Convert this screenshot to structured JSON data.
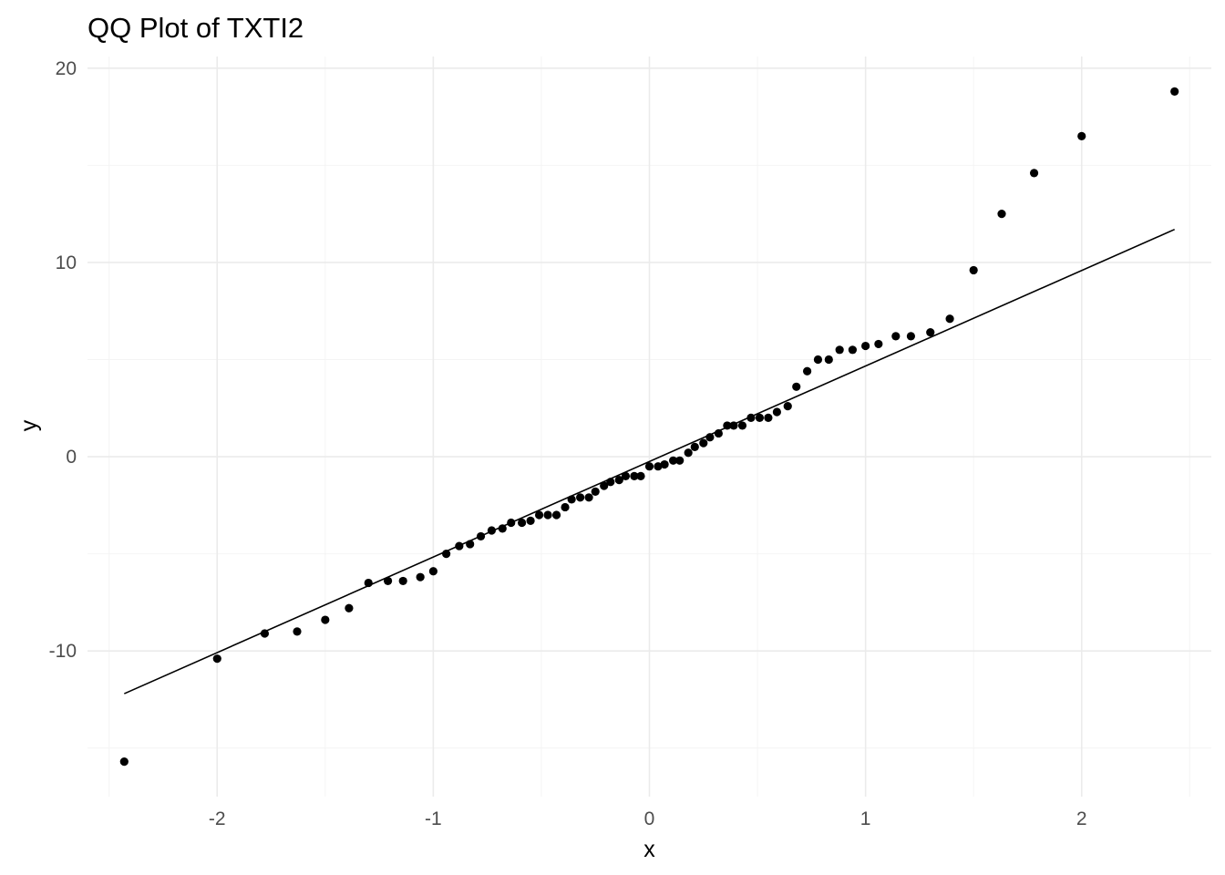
{
  "chart_data": {
    "type": "scatter",
    "title": "QQ Plot of TXTI2",
    "xlabel": "x",
    "ylabel": "y",
    "xlim": [
      -2.6,
      2.6
    ],
    "ylim": [
      -17.5,
      20.6
    ],
    "x_ticks": [
      -2,
      -1,
      0,
      1,
      2
    ],
    "y_ticks": [
      -10,
      0,
      10,
      20
    ],
    "x_tick_labels": [
      "-2",
      "-1",
      "0",
      "1",
      "2"
    ],
    "y_tick_labels": [
      "-10",
      "0",
      "10",
      "20"
    ],
    "grid": true,
    "legend": "none",
    "reference_line": {
      "from": {
        "x": -2.43,
        "y": -12.2
      },
      "to": {
        "x": 2.43,
        "y": 11.7
      }
    },
    "points": [
      {
        "x": -2.43,
        "y": -15.7
      },
      {
        "x": -2.0,
        "y": -10.4
      },
      {
        "x": -1.78,
        "y": -9.1
      },
      {
        "x": -1.63,
        "y": -9.0
      },
      {
        "x": -1.5,
        "y": -8.4
      },
      {
        "x": -1.39,
        "y": -7.8
      },
      {
        "x": -1.3,
        "y": -6.5
      },
      {
        "x": -1.21,
        "y": -6.4
      },
      {
        "x": -1.14,
        "y": -6.4
      },
      {
        "x": -1.06,
        "y": -6.2
      },
      {
        "x": -1.0,
        "y": -5.9
      },
      {
        "x": -0.94,
        "y": -5.0
      },
      {
        "x": -0.88,
        "y": -4.6
      },
      {
        "x": -0.83,
        "y": -4.5
      },
      {
        "x": -0.78,
        "y": -4.1
      },
      {
        "x": -0.73,
        "y": -3.8
      },
      {
        "x": -0.68,
        "y": -3.7
      },
      {
        "x": -0.64,
        "y": -3.4
      },
      {
        "x": -0.59,
        "y": -3.4
      },
      {
        "x": -0.55,
        "y": -3.3
      },
      {
        "x": -0.51,
        "y": -3.0
      },
      {
        "x": -0.47,
        "y": -3.0
      },
      {
        "x": -0.43,
        "y": -3.0
      },
      {
        "x": -0.39,
        "y": -2.6
      },
      {
        "x": -0.36,
        "y": -2.2
      },
      {
        "x": -0.32,
        "y": -2.1
      },
      {
        "x": -0.28,
        "y": -2.1
      },
      {
        "x": -0.25,
        "y": -1.8
      },
      {
        "x": -0.21,
        "y": -1.5
      },
      {
        "x": -0.18,
        "y": -1.3
      },
      {
        "x": -0.14,
        "y": -1.2
      },
      {
        "x": -0.11,
        "y": -1.0
      },
      {
        "x": -0.07,
        "y": -1.0
      },
      {
        "x": -0.04,
        "y": -1.0
      },
      {
        "x": 0.0,
        "y": -0.5
      },
      {
        "x": 0.04,
        "y": -0.5
      },
      {
        "x": 0.07,
        "y": -0.4
      },
      {
        "x": 0.11,
        "y": -0.2
      },
      {
        "x": 0.14,
        "y": -0.2
      },
      {
        "x": 0.18,
        "y": 0.2
      },
      {
        "x": 0.21,
        "y": 0.5
      },
      {
        "x": 0.25,
        "y": 0.7
      },
      {
        "x": 0.28,
        "y": 1.0
      },
      {
        "x": 0.32,
        "y": 1.2
      },
      {
        "x": 0.36,
        "y": 1.6
      },
      {
        "x": 0.39,
        "y": 1.6
      },
      {
        "x": 0.43,
        "y": 1.6
      },
      {
        "x": 0.47,
        "y": 2.0
      },
      {
        "x": 0.51,
        "y": 2.0
      },
      {
        "x": 0.55,
        "y": 2.0
      },
      {
        "x": 0.59,
        "y": 2.3
      },
      {
        "x": 0.64,
        "y": 2.6
      },
      {
        "x": 0.68,
        "y": 3.6
      },
      {
        "x": 0.73,
        "y": 4.4
      },
      {
        "x": 0.78,
        "y": 5.0
      },
      {
        "x": 0.83,
        "y": 5.0
      },
      {
        "x": 0.88,
        "y": 5.5
      },
      {
        "x": 0.94,
        "y": 5.5
      },
      {
        "x": 1.0,
        "y": 5.7
      },
      {
        "x": 1.06,
        "y": 5.8
      },
      {
        "x": 1.14,
        "y": 6.2
      },
      {
        "x": 1.21,
        "y": 6.2
      },
      {
        "x": 1.3,
        "y": 6.4
      },
      {
        "x": 1.39,
        "y": 7.1
      },
      {
        "x": 1.5,
        "y": 9.6
      },
      {
        "x": 1.63,
        "y": 12.5
      },
      {
        "x": 1.78,
        "y": 14.6
      },
      {
        "x": 2.0,
        "y": 16.5
      },
      {
        "x": 2.43,
        "y": 18.8
      }
    ]
  }
}
